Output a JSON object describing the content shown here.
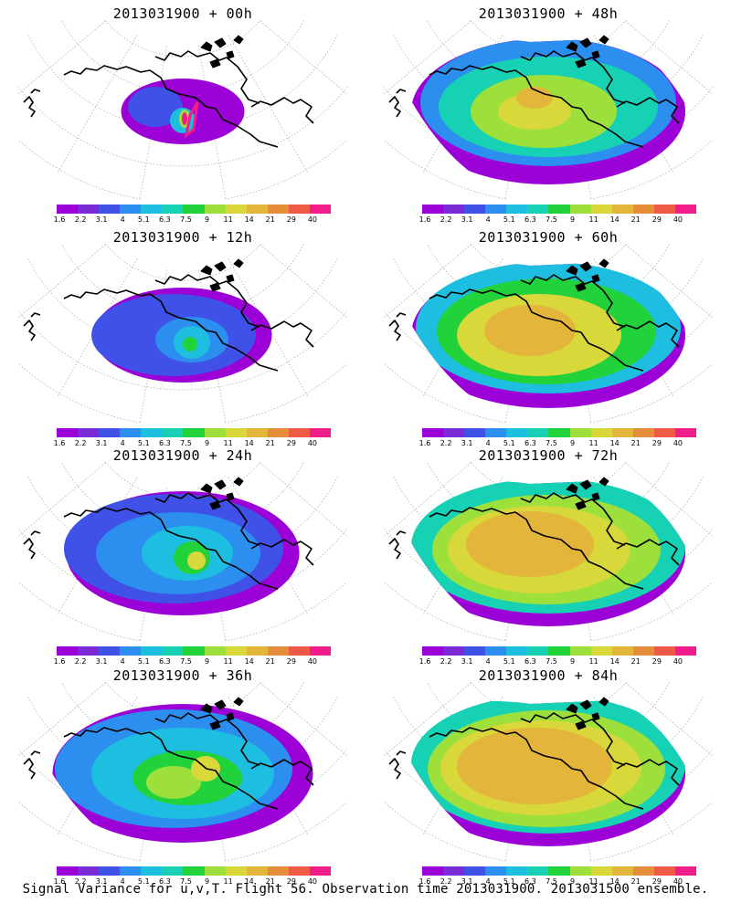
{
  "colorbar": {
    "colors": [
      "#9b00d6",
      "#7a2bd6",
      "#3f51e6",
      "#2c8ff0",
      "#1ebee0",
      "#17d1b5",
      "#22d23a",
      "#9ee03b",
      "#d8d83a",
      "#e3b53a",
      "#e68d3a",
      "#ed5a46",
      "#f01d8a"
    ],
    "labels": [
      "1.6",
      "2.2",
      "3.1",
      "4",
      "5.1",
      "6.3",
      "7.5",
      "9",
      "11",
      "14",
      "21",
      "29",
      "40"
    ]
  },
  "panels": [
    {
      "title": "2013031900 + 00h",
      "level": 0
    },
    {
      "title": "2013031900 + 48h",
      "level": 4
    },
    {
      "title": "2013031900 + 12h",
      "level": 1
    },
    {
      "title": "2013031900 + 60h",
      "level": 5
    },
    {
      "title": "2013031900 + 24h",
      "level": 2
    },
    {
      "title": "2013031900 + 72h",
      "level": 6
    },
    {
      "title": "2013031900 + 36h",
      "level": 3
    },
    {
      "title": "2013031900 + 84h",
      "level": 7
    }
  ],
  "footer": "Signal Variance for u,v,T. Flight 56. Observation time 2013031900. 2013031500 ensemble."
}
